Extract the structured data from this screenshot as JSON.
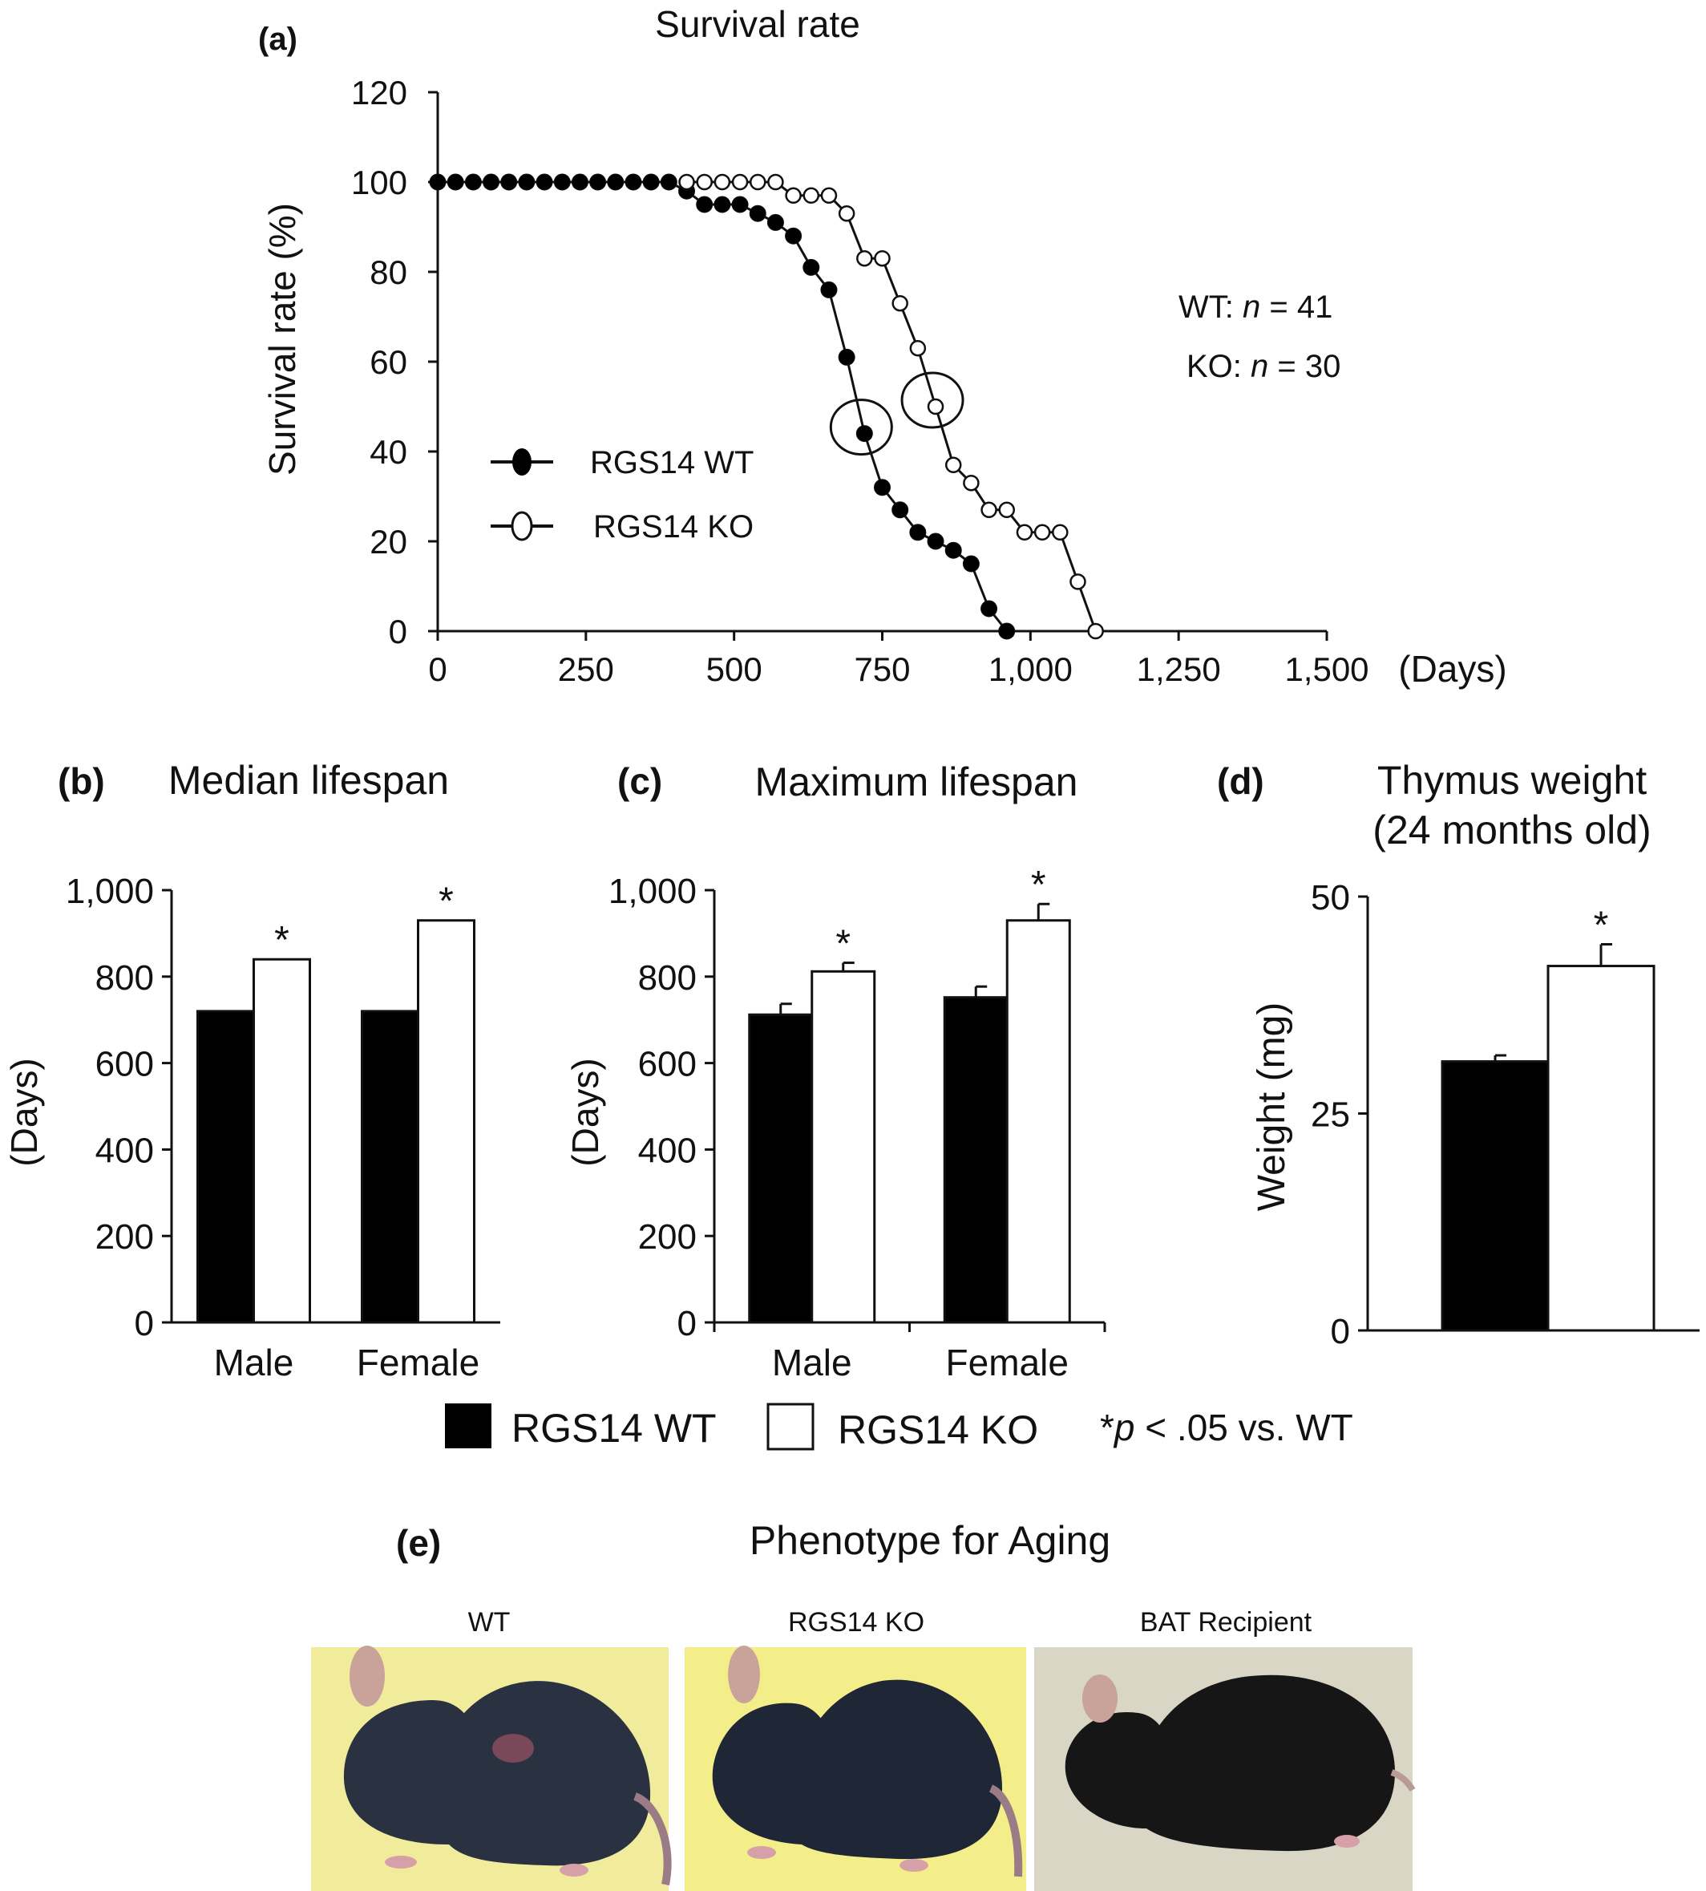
{
  "panels": {
    "a": {
      "label": "(a)",
      "title": "Survival rate",
      "ylabel": "Survival rate (%)",
      "xunit": "(Days)"
    },
    "b": {
      "label": "(b)",
      "title": "Median lifespan",
      "ylabel": "(Days)"
    },
    "c": {
      "label": "(c)",
      "title": "Maximum lifespan",
      "ylabel": "(Days)"
    },
    "d": {
      "label": "(d)",
      "title_line1": "Thymus weight",
      "title_line2": "(24 months old)",
      "ylabel": "Weight (mg)"
    },
    "e": {
      "label": "(e)",
      "title": "Phenotype for Aging",
      "photos": [
        {
          "caption": "WT",
          "fur": "#2a3140",
          "bg": "#f1ec9c"
        },
        {
          "caption": "RGS14 KO",
          "fur": "#1f2635",
          "bg": "#f3ee8a"
        },
        {
          "caption": "BAT Recipient",
          "fur": "#161616",
          "bg": "#d9d6c6"
        }
      ]
    }
  },
  "annotations": {
    "wt_n_prefix": "WT: ",
    "wt_n_italic": "n",
    "wt_n_suffix": " = 41",
    "ko_n_prefix": "KO: ",
    "ko_n_italic": "n",
    "ko_n_suffix": " = 30"
  },
  "bar_legend": {
    "wt": "RGS14 WT",
    "ko": "RGS14 KO",
    "sig_prefix": "*",
    "sig_italic": "p",
    "sig_suffix": " < .05 vs. WT"
  },
  "colors": {
    "wt_fill": "#000000",
    "ko_fill": "#ffffff",
    "axis": "#111111"
  },
  "chart_data": [
    {
      "id": "a",
      "type": "line",
      "title": "Survival rate",
      "xlabel": "(Days)",
      "ylabel": "Survival rate (%)",
      "xlim": [
        0,
        1500
      ],
      "ylim": [
        0,
        120
      ],
      "xticks": [
        0,
        250,
        500,
        750,
        1000,
        1250,
        1500
      ],
      "xtick_labels": [
        "0",
        "250",
        "500",
        "750",
        "1,000",
        "1,250",
        "1,500"
      ],
      "yticks": [
        0,
        20,
        40,
        60,
        80,
        100,
        120
      ],
      "legend_position": "lower-left",
      "series": [
        {
          "name": "RGS14 WT",
          "marker": "filled-circle",
          "x": [
            0,
            30,
            60,
            90,
            120,
            150,
            180,
            210,
            240,
            270,
            300,
            330,
            360,
            390,
            420,
            450,
            480,
            510,
            540,
            570,
            600,
            630,
            660,
            690,
            720,
            750,
            780,
            810,
            840,
            870,
            900,
            930,
            960
          ],
          "y": [
            100,
            100,
            100,
            100,
            100,
            100,
            100,
            100,
            100,
            100,
            100,
            100,
            100,
            100,
            98,
            95,
            95,
            95,
            93,
            91,
            88,
            81,
            76,
            61,
            44,
            32,
            27,
            22,
            20,
            18,
            15,
            5,
            0
          ],
          "highlight_x": 720
        },
        {
          "name": "RGS14 KO",
          "marker": "open-circle",
          "x": [
            420,
            450,
            480,
            510,
            540,
            570,
            600,
            630,
            660,
            690,
            720,
            750,
            780,
            810,
            840,
            870,
            900,
            930,
            960,
            990,
            1020,
            1050,
            1080,
            1110
          ],
          "y": [
            100,
            100,
            100,
            100,
            100,
            100,
            97,
            97,
            97,
            93,
            83,
            83,
            73,
            63,
            50,
            37,
            33,
            27,
            27,
            22,
            22,
            22,
            11,
            0
          ],
          "highlight_x": 840
        }
      ]
    },
    {
      "id": "b",
      "type": "bar",
      "title": "Median lifespan",
      "ylabel": "(Days)",
      "categories": [
        "Male",
        "Female"
      ],
      "ylim": [
        0,
        1000
      ],
      "yticks": [
        0,
        200,
        400,
        600,
        800,
        1000
      ],
      "ytick_labels": [
        "0",
        "200",
        "400",
        "600",
        "800",
        "1,000"
      ],
      "series": [
        {
          "name": "RGS14 WT",
          "values": [
            720,
            720
          ]
        },
        {
          "name": "RGS14 KO",
          "values": [
            840,
            930
          ],
          "significant": [
            true,
            true
          ]
        }
      ]
    },
    {
      "id": "c",
      "type": "bar",
      "title": "Maximum lifespan",
      "ylabel": "(Days)",
      "categories": [
        "Male",
        "Female"
      ],
      "ylim": [
        0,
        1000
      ],
      "yticks": [
        0,
        200,
        400,
        600,
        800,
        1000
      ],
      "ytick_labels": [
        "0",
        "200",
        "400",
        "600",
        "800",
        "1,000"
      ],
      "series": [
        {
          "name": "RGS14 WT",
          "values": [
            712,
            752
          ],
          "errors": [
            25,
            25
          ]
        },
        {
          "name": "RGS14 KO",
          "values": [
            812,
            930
          ],
          "errors": [
            20,
            38
          ],
          "significant": [
            true,
            true
          ]
        }
      ]
    },
    {
      "id": "d",
      "type": "bar",
      "title": "Thymus weight (24 months old)",
      "ylabel": "Weight (mg)",
      "categories": [
        ""
      ],
      "ylim": [
        0,
        50
      ],
      "yticks": [
        0,
        25,
        50
      ],
      "ytick_labels": [
        "0",
        "25",
        "50"
      ],
      "series": [
        {
          "name": "RGS14 WT",
          "values": [
            31
          ],
          "errors": [
            0.7
          ]
        },
        {
          "name": "RGS14 KO",
          "values": [
            42
          ],
          "errors": [
            2.5
          ],
          "significant": [
            true
          ]
        }
      ]
    }
  ]
}
